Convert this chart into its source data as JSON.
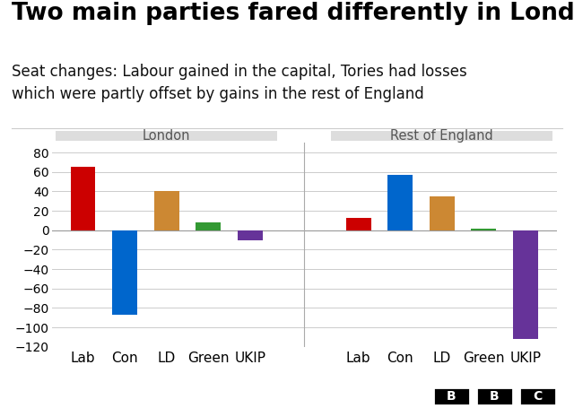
{
  "title": "Two main parties fared differently in London",
  "subtitle": "Seat changes: Labour gained in the capital, Tories had losses\nwhich were partly offset by gains in the rest of England",
  "group_labels": [
    "London",
    "Rest of England"
  ],
  "party_labels": [
    "Lab",
    "Con",
    "LD",
    "Green",
    "UKIP"
  ],
  "london_values": [
    65,
    -87,
    40,
    8,
    -10
  ],
  "rest_values": [
    13,
    57,
    35,
    2,
    -112
  ],
  "bar_colors": [
    "#cc0000",
    "#0066cc",
    "#cc8833",
    "#339933",
    "#663399"
  ],
  "ylim": [
    -120,
    90
  ],
  "yticks": [
    -120,
    -100,
    -80,
    -60,
    -40,
    -20,
    0,
    20,
    40,
    60,
    80
  ],
  "background_color": "#ffffff",
  "panel_bg": "#dddddd",
  "grid_color": "#cccccc",
  "title_fontsize": 19,
  "subtitle_fontsize": 12,
  "label_fontsize": 11,
  "tick_fontsize": 10,
  "bar_width": 0.6
}
